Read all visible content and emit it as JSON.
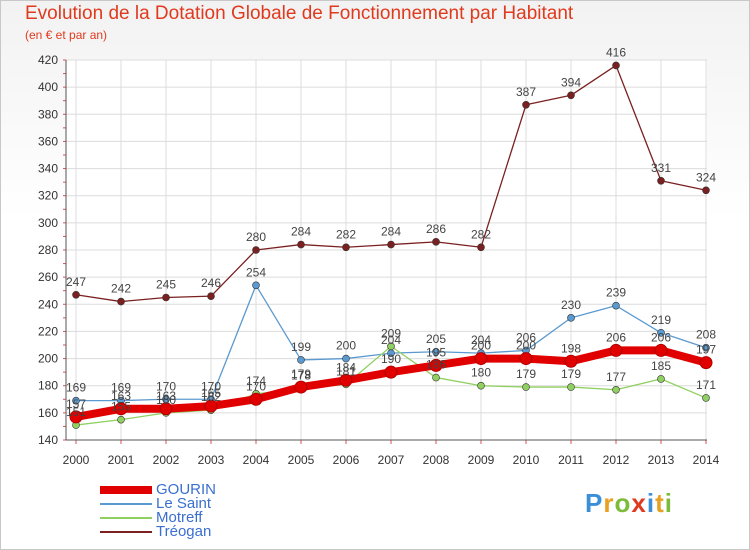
{
  "header": {
    "title": "Evolution de la Dotation Globale de Fonctionnement par Habitant",
    "subtitle": "(en € et par an)"
  },
  "brand": {
    "letters": [
      "P",
      "r",
      "o",
      "x",
      "i",
      "t",
      "i"
    ],
    "colors": [
      "#3a8fd8",
      "#e8a020",
      "#7dbb3a",
      "#e03a1e",
      "#3a8fd8",
      "#e8a020",
      "#7dbb3a"
    ]
  },
  "chart_data": {
    "type": "line",
    "title": "Evolution de la Dotation Globale de Fonctionnement par Habitant",
    "subtitle": "(en € et par an)",
    "xlabel": "",
    "ylabel": "",
    "x": [
      2000,
      2001,
      2002,
      2003,
      2004,
      2005,
      2006,
      2007,
      2008,
      2009,
      2010,
      2011,
      2012,
      2013,
      2014
    ],
    "ylim": [
      140,
      420
    ],
    "yticks": [
      140,
      160,
      180,
      200,
      220,
      240,
      260,
      280,
      300,
      320,
      340,
      360,
      380,
      400,
      420
    ],
    "grid": true,
    "legend_position": "bottom-left",
    "series": [
      {
        "name": "Tréogan",
        "color": "#7a2020",
        "values": [
          247,
          242,
          245,
          246,
          280,
          284,
          282,
          284,
          286,
          282,
          387,
          394,
          416,
          331,
          324
        ],
        "labels": [
          "247",
          "242",
          "245",
          "246",
          "280",
          "284",
          "282",
          "284",
          "286",
          "282",
          "387",
          "394",
          "416",
          "331",
          "324"
        ]
      },
      {
        "name": "Le Saint",
        "color": "#5a9ad0",
        "values": [
          169,
          169,
          170,
          170,
          254,
          199,
          200,
          204,
          205,
          204,
          206,
          230,
          239,
          219,
          208
        ],
        "labels": [
          "169",
          "169",
          "170",
          "170",
          "254",
          "199",
          "200",
          "204",
          "205",
          "204",
          "206",
          "230",
          "239",
          "219",
          "208"
        ]
      },
      {
        "name": "Motreff",
        "color": "#8fd060",
        "values": [
          151,
          155,
          160,
          162,
          174,
          178,
          181,
          209,
          186,
          180,
          179,
          179,
          177,
          185,
          171
        ],
        "labels": [
          "151",
          "155",
          "160",
          "162",
          "174",
          "178",
          "181",
          "209",
          "186",
          "180",
          "179",
          "179",
          "177",
          "185",
          "171"
        ]
      },
      {
        "name": "GOURIN",
        "color": "#e00000",
        "values": [
          157,
          163,
          163,
          165,
          170,
          179,
          184,
          190,
          195,
          200,
          200,
          198,
          206,
          206,
          197
        ],
        "labels": [
          "157",
          "163",
          "163",
          "165",
          "170",
          "179",
          "184",
          "190",
          "195",
          "200",
          "200",
          "198",
          "206",
          "206",
          "197"
        ]
      }
    ]
  }
}
